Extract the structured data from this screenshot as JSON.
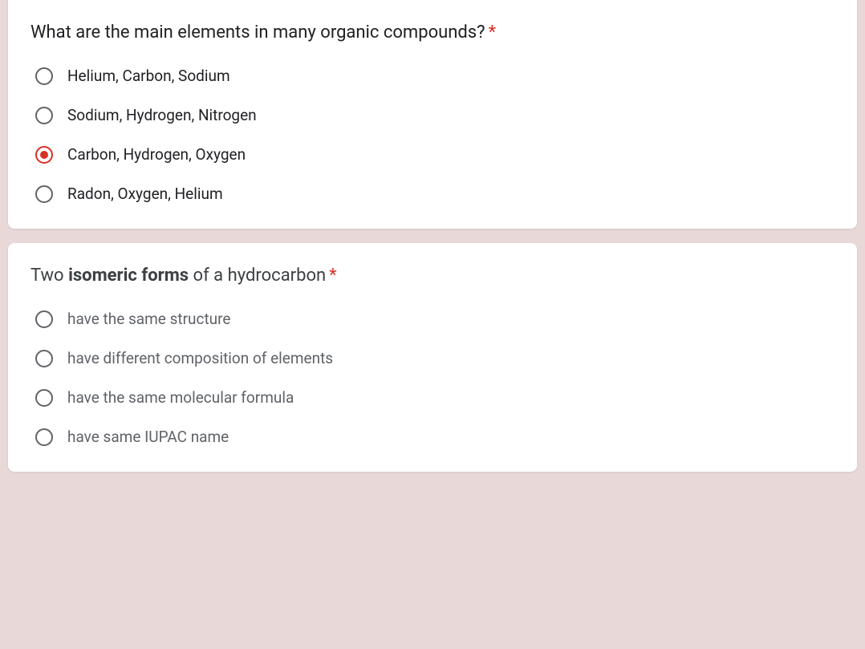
{
  "colors": {
    "page_bg": "#e8d8d8",
    "card_bg": "#ffffff",
    "text_primary": "#202124",
    "text_secondary": "#5f6368",
    "required": "#d93025",
    "radio_border": "#5f6368",
    "radio_selected": "#d93025"
  },
  "typography": {
    "question_fontsize": 22,
    "option_fontsize": 19,
    "font_family": "Roboto, Arial, sans-serif"
  },
  "questions": [
    {
      "prompt_plain": "What are the main elements in many organic compounds?",
      "prompt_bold_part": "",
      "required": true,
      "options": [
        {
          "label": "Helium, Carbon, Sodium",
          "selected": false
        },
        {
          "label": "Sodium, Hydrogen, Nitrogen",
          "selected": false
        },
        {
          "label": "Carbon, Hydrogen, Oxygen",
          "selected": true
        },
        {
          "label": "Radon, Oxygen, Helium",
          "selected": false
        }
      ]
    },
    {
      "prompt_pre": "Two ",
      "prompt_bold": "isomeric forms",
      "prompt_post": " of a hydrocarbon",
      "required": true,
      "options": [
        {
          "label": "have the same structure",
          "selected": false
        },
        {
          "label": "have different composition of elements",
          "selected": false
        },
        {
          "label": "have the same molecular formula",
          "selected": false
        },
        {
          "label": "have same IUPAC name",
          "selected": false
        }
      ]
    }
  ]
}
